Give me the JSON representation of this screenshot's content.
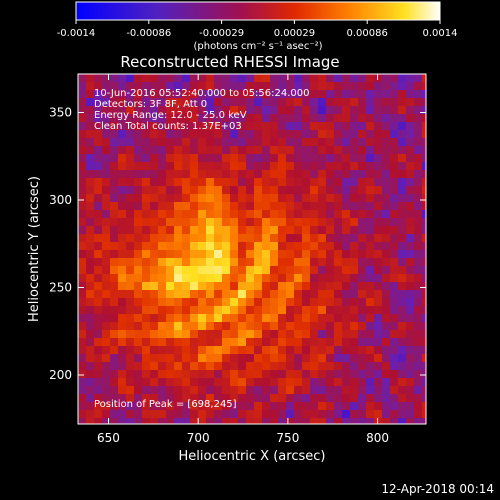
{
  "chart_data": {
    "type": "heatmap",
    "title": "Reconstructed RHESSI Image",
    "xlabel": "Heliocentric X (arcsec)",
    "ylabel": "Heliocentric Y (arcsec)",
    "xlim": [
      633,
      827
    ],
    "ylim": [
      172,
      372
    ],
    "xticks": [
      650,
      700,
      750,
      800
    ],
    "yticks": [
      200,
      250,
      300,
      350
    ],
    "peak": {
      "x": 698,
      "y": 245
    },
    "colorbar": {
      "range": [
        -0.0014,
        0.0014
      ],
      "ticks": [
        "-0.0014",
        "-0.00086",
        "-0.00029",
        "0.00029",
        "0.00086",
        "0.0014"
      ],
      "label": "(photons cm⁻² s⁻¹ asec⁻²)",
      "colors": [
        "#0000ff",
        "#6a1fb0",
        "#b01030",
        "#e03000",
        "#ff8000",
        "#ffe020",
        "#ffffff"
      ]
    },
    "annotations": [
      "10-Jun-2016 05:52:40.000 to 05:56:24.000",
      "Detectors: 3F 8F, Att 0",
      "Energy Range: 12.0 - 25.0 keV",
      "Clean     Total counts: 1.37E+03"
    ],
    "peak_label": "Position of Peak = [698,245]"
  },
  "timestamp": "12-Apr-2018 00:14"
}
